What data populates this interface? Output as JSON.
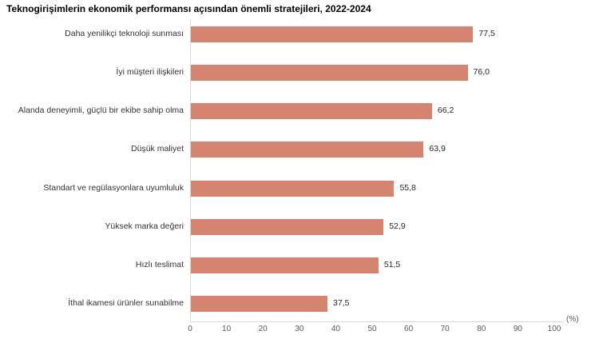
{
  "title": "Teknogirişimlerin ekonomik performansı açısından önemli stratejileri, 2022-2024",
  "chart_data": {
    "type": "bar",
    "orientation": "horizontal",
    "title": "Teknogirişimlerin ekonomik performansı açısından önemli stratejileri, 2022-2024",
    "categories": [
      "Daha yenilikçi teknoloji sunması",
      "İyi müşteri ilişkileri",
      "Alanda deneyimli, güçlü bir ekibe sahip olma",
      "Düşük maliyet",
      "Standart ve regülasyonlara uyumluluk",
      "Yüksek marka değeri",
      "Hızlı teslimat",
      "İthal ikamesi ürünler sunabilme"
    ],
    "values": [
      77.5,
      76.0,
      66.2,
      63.9,
      55.8,
      52.9,
      51.5,
      37.5
    ],
    "value_labels": [
      "77,5",
      "76,0",
      "66,2",
      "63,9",
      "55,8",
      "52,9",
      "51,5",
      "37,5"
    ],
    "xlabel": "(%)",
    "ylabel": "",
    "xlim": [
      0,
      100
    ],
    "x_ticks": [
      0,
      10,
      20,
      30,
      40,
      50,
      60,
      70,
      80,
      90,
      100
    ],
    "x_tick_labels": [
      "0",
      "10",
      "20",
      "30",
      "40",
      "50",
      "60",
      "70",
      "80",
      "90",
      "100"
    ],
    "grid": "off",
    "legend": "none",
    "bar_color": "#d5856f",
    "axis_color": "#d9d9d9"
  }
}
